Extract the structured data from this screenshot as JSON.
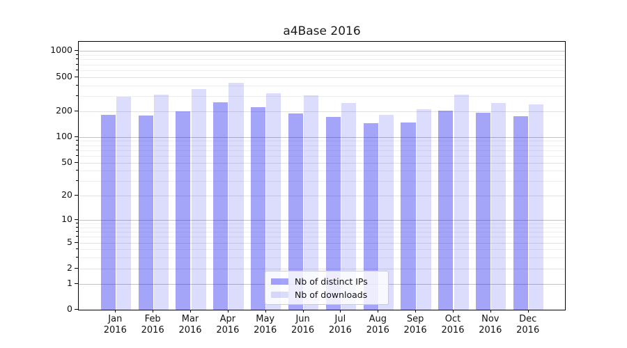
{
  "title": "a4Base 2016",
  "chart_data": {
    "type": "bar",
    "title": "a4Base 2016",
    "categories": [
      "Jan",
      "Feb",
      "Mar",
      "Apr",
      "May",
      "Jun",
      "Jul",
      "Aug",
      "Sep",
      "Oct",
      "Nov",
      "Dec"
    ],
    "x_year": "2016",
    "series": [
      {
        "name": "Nb of distinct IPs",
        "color": "#1111ee",
        "alpha": 0.38,
        "values": [
          180,
          178,
          199,
          254,
          224,
          189,
          171,
          144,
          147,
          204,
          192,
          176
        ]
      },
      {
        "name": "Nb of downloads",
        "color": "#1111ee",
        "alpha": 0.15,
        "values": [
          292,
          310,
          364,
          430,
          326,
          308,
          249,
          180,
          212,
          312,
          247,
          242
        ]
      }
    ],
    "y_scale": "log1p",
    "y_ticks": [
      0,
      1,
      2,
      5,
      10,
      20,
      50,
      100,
      200,
      500,
      1000
    ],
    "y_minor_ticks": [
      3,
      4,
      6,
      7,
      8,
      9,
      30,
      40,
      60,
      70,
      80,
      90,
      300,
      400,
      600,
      700,
      800,
      900
    ],
    "ylim": [
      0,
      1260
    ],
    "grid": true,
    "legend_position": "lower-center",
    "colors": {
      "grid_pow10": "#c2c2c2",
      "grid_major": "#e1e1e1",
      "grid_minor": "#efefef",
      "spine": "#000000",
      "background": "#ffffff"
    }
  }
}
